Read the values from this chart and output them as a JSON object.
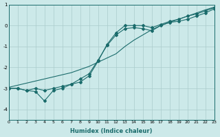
{
  "xlabel": "Humidex (Indice chaleur)",
  "ylabel": "",
  "bg_color": "#cce9e9",
  "grid_color": "#aacccc",
  "line_color": "#1a6b6b",
  "xlim": [
    0,
    23
  ],
  "ylim": [
    -4.5,
    1.0
  ],
  "xticks": [
    0,
    1,
    2,
    3,
    4,
    5,
    6,
    7,
    8,
    9,
    10,
    11,
    12,
    13,
    14,
    15,
    16,
    17,
    18,
    19,
    20,
    21,
    22,
    23
  ],
  "yticks": [
    -4,
    -3,
    -2,
    -1,
    0,
    1
  ],
  "line1_x": [
    0,
    1,
    2,
    3,
    4,
    5,
    6,
    7,
    8,
    9,
    10,
    11,
    12,
    13,
    14,
    15,
    16,
    17,
    18,
    19,
    20,
    21,
    22,
    23
  ],
  "line1_y": [
    -3.0,
    -3.0,
    -3.1,
    -3.0,
    -3.1,
    -3.0,
    -2.9,
    -2.8,
    -2.55,
    -2.3,
    -1.65,
    -0.95,
    -0.45,
    -0.15,
    -0.1,
    -0.15,
    -0.25,
    0.0,
    0.15,
    0.2,
    0.3,
    0.45,
    0.6,
    0.8
  ],
  "line2_x": [
    0,
    1,
    2,
    3,
    4,
    5,
    6,
    7,
    8,
    9,
    10,
    11,
    12,
    13,
    14,
    15,
    16,
    17,
    18,
    19,
    20,
    21,
    22,
    23
  ],
  "line2_y": [
    -3.0,
    -3.0,
    -3.1,
    -3.15,
    -3.6,
    -3.1,
    -3.0,
    -2.8,
    -2.7,
    -2.4,
    -1.7,
    -0.9,
    -0.35,
    0.0,
    0.0,
    0.0,
    -0.1,
    0.05,
    0.2,
    0.3,
    0.45,
    0.55,
    0.7,
    0.85
  ],
  "line3_x": [
    0,
    1,
    2,
    3,
    4,
    5,
    6,
    7,
    8,
    9,
    10,
    11,
    12,
    13,
    14,
    15,
    16,
    17,
    18,
    19,
    20,
    21,
    22,
    23
  ],
  "line3_y": [
    -2.95,
    -2.85,
    -2.75,
    -2.65,
    -2.55,
    -2.45,
    -2.35,
    -2.25,
    -2.1,
    -1.95,
    -1.75,
    -1.55,
    -1.35,
    -1.0,
    -0.7,
    -0.45,
    -0.2,
    0.0,
    0.15,
    0.3,
    0.45,
    0.6,
    0.75,
    0.88
  ]
}
